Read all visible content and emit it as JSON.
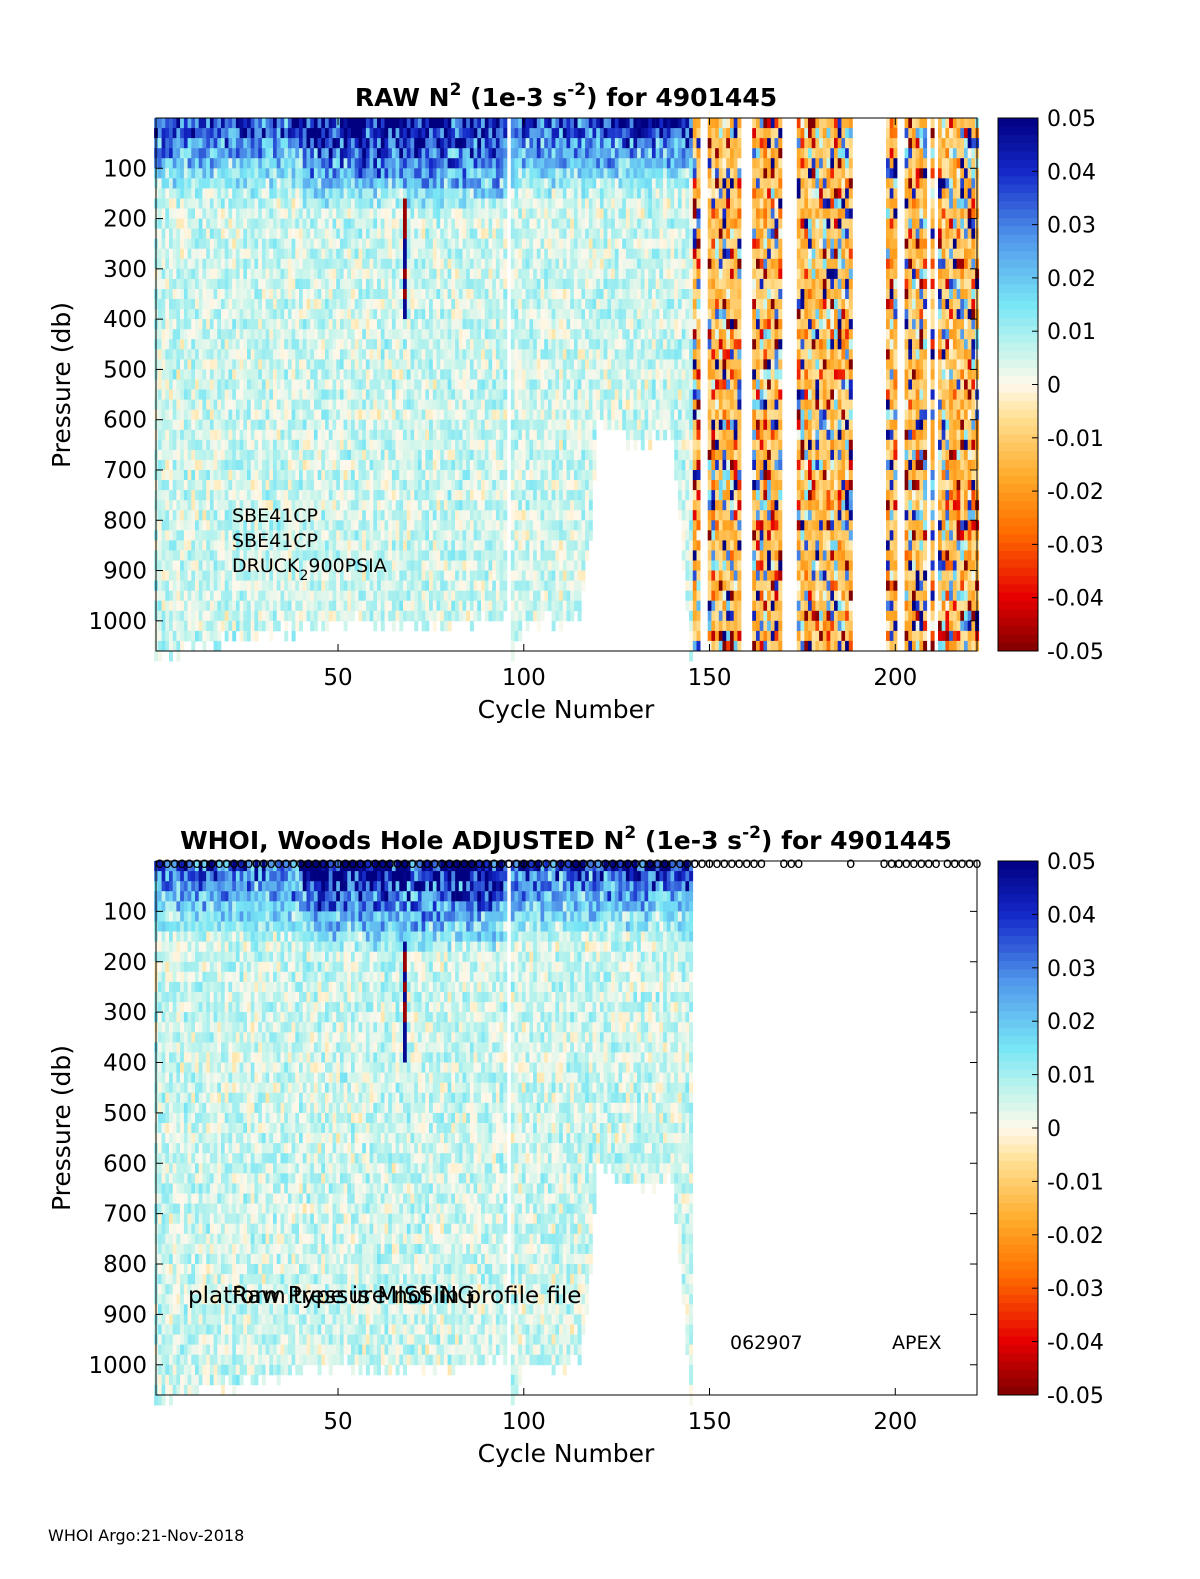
{
  "chart_data": [
    {
      "type": "heatmap",
      "title": {
        "main": "RAW N",
        "sup": "2",
        "mid": " (1e-3 s",
        "sup2": "-2",
        "end": ") for 4901445"
      },
      "xlabel": "Cycle Number",
      "ylabel": "Pressure (db)",
      "xlim": [
        1,
        222
      ],
      "ylim": [
        1060,
        0
      ],
      "x_ticks": [
        50,
        100,
        150,
        200
      ],
      "y_ticks": [
        100,
        200,
        300,
        400,
        500,
        600,
        700,
        800,
        900,
        1000
      ],
      "colorbar": {
        "min": -0.05,
        "max": 0.05,
        "tick_labels": [
          "0.05",
          "0.04",
          "0.03",
          "0.02",
          "0.01",
          "0",
          "-0.01",
          "-0.02",
          "-0.03",
          "-0.04",
          "-0.05"
        ]
      },
      "annotations": [
        "SBE41CP",
        "SBE41CP",
        "DRUCK",
        "2",
        "900PSIA"
      ],
      "profile_max_pressure": [
        [
          1,
          1060
        ],
        [
          20,
          1030
        ],
        [
          50,
          990
        ],
        [
          80,
          1000
        ],
        [
          95,
          975
        ],
        [
          97,
          1060
        ],
        [
          100,
          990
        ],
        [
          110,
          990
        ],
        [
          115,
          990
        ],
        [
          118,
          820
        ],
        [
          120,
          600
        ],
        [
          130,
          640
        ],
        [
          140,
          620
        ],
        [
          145,
          1060
        ],
        [
          150,
          1060
        ],
        [
          160,
          1060
        ],
        [
          170,
          1060
        ],
        [
          175,
          1060
        ],
        [
          185,
          1060
        ],
        [
          200,
          1060
        ],
        [
          205,
          1060
        ],
        [
          210,
          1060
        ],
        [
          215,
          1060
        ],
        [
          222,
          1060
        ]
      ]
    },
    {
      "type": "heatmap",
      "title": {
        "pre": "WHOI, Woods Hole  ADJUSTED N",
        "sup": "2",
        "mid": " (1e-3 s",
        "sup2": "-2",
        "end": ") for 4901445"
      },
      "xlabel": "Cycle Number",
      "ylabel": "Pressure (db)",
      "xlim": [
        1,
        222
      ],
      "ylim": [
        1060,
        0
      ],
      "x_ticks": [
        50,
        100,
        150,
        200
      ],
      "y_ticks": [
        100,
        200,
        300,
        400,
        500,
        600,
        700,
        800,
        900,
        1000
      ],
      "colorbar": {
        "min": -0.05,
        "max": 0.05,
        "tick_labels": [
          "0.05",
          "0.04",
          "0.03",
          "0.02",
          "0.01",
          "0",
          "-0.01",
          "-0.02",
          "-0.03",
          "-0.04",
          "-0.05"
        ]
      },
      "annotations": {
        "overlap_1": "platform type is MISSING",
        "overlap_2": "Raw Pressure not in profile file",
        "serial": "062907",
        "platform": "APEX"
      },
      "qc_marker": "o",
      "qc_marker_cycles": [
        2,
        4,
        6,
        8,
        10,
        12,
        14,
        16,
        18,
        20,
        22,
        24,
        26,
        28,
        30,
        32,
        34,
        36,
        38,
        40,
        42,
        44,
        46,
        48,
        50,
        52,
        54,
        56,
        58,
        60,
        62,
        64,
        66,
        68,
        70,
        72,
        74,
        76,
        78,
        80,
        82,
        84,
        86,
        88,
        90,
        92,
        94,
        96,
        98,
        100,
        102,
        104,
        106,
        108,
        110,
        112,
        114,
        116,
        118,
        120,
        122,
        124,
        126,
        128,
        130,
        132,
        134,
        136,
        138,
        140,
        142,
        144,
        146,
        148,
        150,
        152,
        154,
        156,
        158,
        160,
        162,
        164,
        170,
        172,
        174,
        188,
        197,
        199,
        201,
        203,
        205,
        207,
        209,
        211,
        214,
        216,
        218,
        220,
        222
      ],
      "valid_cycle_max": 145
    }
  ],
  "footer": "WHOI Argo:21-Nov-2018"
}
